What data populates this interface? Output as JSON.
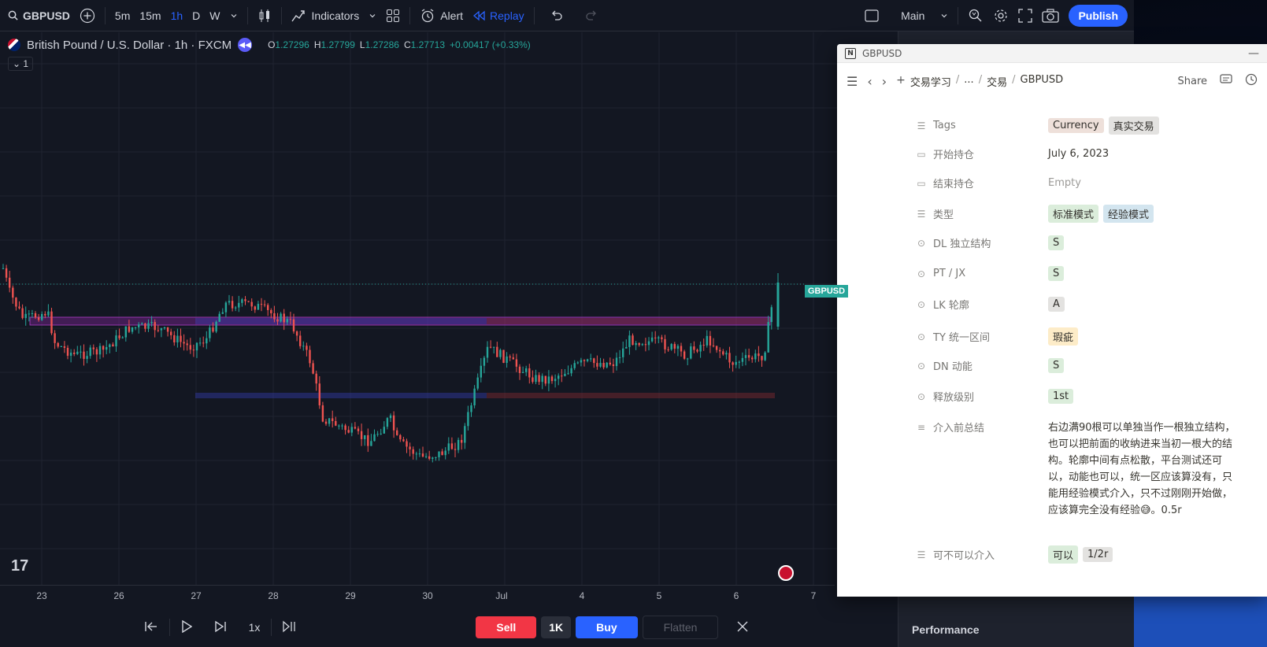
{
  "toolbar": {
    "symbol": "GBPUSD",
    "intervals": [
      "5m",
      "15m",
      "1h",
      "D",
      "W"
    ],
    "active_interval": "1h",
    "indicators_label": "Indicators",
    "alert_label": "Alert",
    "replay_label": "Replay",
    "layout_label": "Main",
    "publish_label": "Publish"
  },
  "chart_header": {
    "title": "British Pound / U.S. Dollar · 1h · FXCM",
    "o_label": "O",
    "o": "1.27296",
    "h_label": "H",
    "h": "1.27799",
    "l_label": "L",
    "l": "1.27286",
    "c_label": "C",
    "c": "1.27713",
    "change": "+0.00417 (+0.33%)",
    "indicator_count": "1",
    "price_tag": "GBPUSD"
  },
  "time_axis": [
    "23",
    "26",
    "27",
    "28",
    "29",
    "30",
    "Jul",
    "4",
    "5",
    "6",
    "7"
  ],
  "replay_bar": {
    "speed": "1x",
    "sell_label": "Sell",
    "qty_label": "1K",
    "buy_label": "Buy",
    "flatten_label": "Flatten"
  },
  "side_panel": {
    "performance_label": "Performance"
  },
  "notion": {
    "window_title": "GBPUSD",
    "breadcrumbs": [
      "交易学习",
      "...",
      "交易",
      "GBPUSD"
    ],
    "share_label": "Share",
    "properties": [
      {
        "label": "Tags",
        "icon": "list-icon",
        "tags": [
          {
            "text": "Currency",
            "color": "brown"
          },
          {
            "text": "真实交易",
            "color": "gray"
          }
        ]
      },
      {
        "label": "开始持仓",
        "icon": "calendar-icon",
        "text": "July 6, 2023"
      },
      {
        "label": "结束持仓",
        "icon": "calendar-icon",
        "text": "Empty",
        "empty": true
      },
      {
        "label": "类型",
        "icon": "list-icon",
        "tags": [
          {
            "text": "标准模式",
            "color": "green"
          },
          {
            "text": "经验模式",
            "color": "blue"
          }
        ]
      },
      {
        "label": "DL 独立结构",
        "icon": "select-icon",
        "tags": [
          {
            "text": "S",
            "color": "green"
          }
        ]
      },
      {
        "label": "PT / JX",
        "icon": "select-icon",
        "tags": [
          {
            "text": "S",
            "color": "green"
          }
        ]
      },
      {
        "label": "LK 轮廓",
        "icon": "select-icon",
        "tags": [
          {
            "text": "A",
            "color": "gray"
          }
        ]
      },
      {
        "label": "TY 统一区间",
        "icon": "select-icon",
        "tags": [
          {
            "text": "瑕疵",
            "color": "yellow"
          }
        ]
      },
      {
        "label": "DN 动能",
        "icon": "select-icon",
        "tags": [
          {
            "text": "S",
            "color": "green"
          }
        ]
      },
      {
        "label": "释放级别",
        "icon": "select-icon",
        "tags": [
          {
            "text": "1st",
            "color": "green"
          }
        ]
      },
      {
        "label": "介入前总结",
        "icon": "text-icon",
        "text": "右边满90根可以单独当作一根独立结构，也可以把前面的收纳进来当初一根大的结构。轮廓中间有点松散，平台测试还可以，动能也可以，统一区应该算没有，只能用经验模式介入，只不过刚刚开始做，应该算完全没有经验😅。0.5r",
        "long": true
      },
      {
        "label": "可不可以介入",
        "icon": "list-icon",
        "tags": [
          {
            "text": "可以",
            "color": "green"
          },
          {
            "text": "1/2r",
            "color": "gray"
          }
        ]
      }
    ]
  }
}
